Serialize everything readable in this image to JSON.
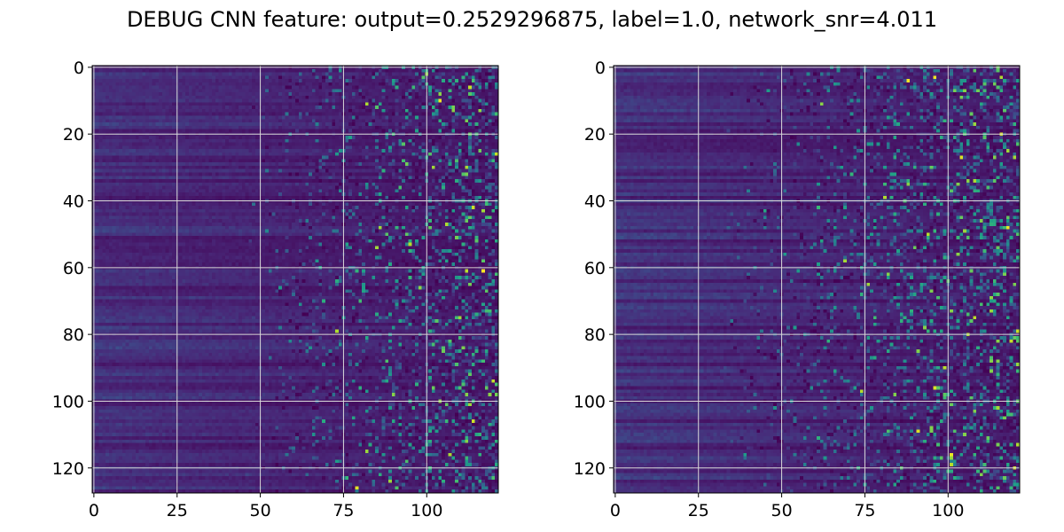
{
  "figure": {
    "title": "DEBUG CNN feature: output=0.2529296875, label=1.0, network_snr=4.011"
  },
  "colors": {
    "colormap": "viridis",
    "viridis_stops": [
      "#440154",
      "#482878",
      "#3e4989",
      "#31688e",
      "#26828e",
      "#1f9e89",
      "#35b779",
      "#6ece58",
      "#b5de2b",
      "#fde725"
    ],
    "grid": "#d9d9d9",
    "axes_edge": "#000000"
  },
  "chart_data": [
    {
      "type": "heatmap",
      "panel": "left",
      "title": "",
      "xlabel": "",
      "ylabel": "",
      "rows": 128,
      "cols": 122,
      "xlim": [
        0,
        122
      ],
      "ylim": [
        128,
        0
      ],
      "y_inverted": true,
      "xticks": [
        0,
        25,
        50,
        75,
        100
      ],
      "yticks": [
        0,
        20,
        40,
        60,
        80,
        100,
        120
      ],
      "grid": true,
      "value_range": [
        0,
        1
      ],
      "description_of_values": "approximate reconstruction: smooth low-magnitude horizontal banding for columns ~0-45, increasingly noisy sparse activations toward the right with occasional bright pixels"
    },
    {
      "type": "heatmap",
      "panel": "right",
      "title": "",
      "xlabel": "",
      "ylabel": "",
      "rows": 128,
      "cols": 122,
      "xlim": [
        0,
        122
      ],
      "ylim": [
        128,
        0
      ],
      "y_inverted": true,
      "xticks": [
        0,
        25,
        50,
        75,
        100
      ],
      "yticks": [
        0,
        20,
        40,
        60,
        80,
        100,
        120
      ],
      "grid": true,
      "value_range": [
        0,
        1
      ],
      "description_of_values": "approximate reconstruction: faint horizontal banding on the left, dense noisy speckle with bright pixels from column ~60 onward"
    }
  ]
}
